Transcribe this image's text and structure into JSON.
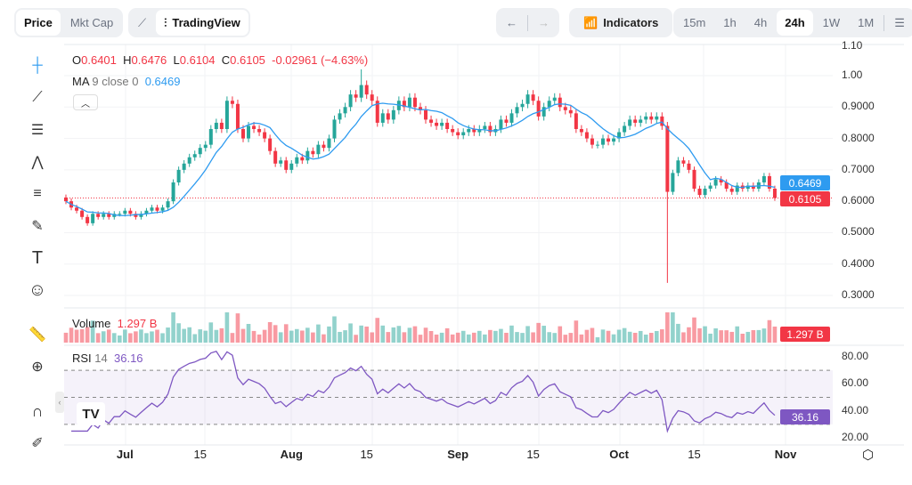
{
  "toolbar": {
    "price": "Price",
    "mkt_cap": "Mkt Cap",
    "tradingview": "TradingView",
    "indicators": "Indicators",
    "timeframes": [
      "15m",
      "1h",
      "4h",
      "24h",
      "1W",
      "1M"
    ],
    "active_timeframe": "24h"
  },
  "legend": {
    "o_label": "O",
    "o": "0.6401",
    "h_label": "H",
    "h": "0.6476",
    "l_label": "L",
    "l": "0.6104",
    "c_label": "C",
    "c": "0.6105",
    "change": "-0.02961 (−4.63%)",
    "ma_label": "MA",
    "ma_params": "9 close 0",
    "ma_value": "0.6469",
    "volume_label": "Volume",
    "volume_value": "1.297 B",
    "rsi_label": "RSI",
    "rsi_params": "14",
    "rsi_value": "36.16"
  },
  "tags": {
    "ma": "0.6469",
    "price": "0.6105",
    "volume": "1.297 B",
    "rsi": "36.16"
  },
  "colors": {
    "up": "#26a69a",
    "down": "#f23645",
    "ma": "#2e9bf0",
    "rsi": "#7e57c2"
  },
  "chart_data": {
    "type": "candlestick",
    "start_date": "Jun 20",
    "closes": [
      0.6,
      0.58,
      0.57,
      0.55,
      0.53,
      0.56,
      0.55,
      0.56,
      0.55,
      0.56,
      0.56,
      0.57,
      0.56,
      0.55,
      0.56,
      0.57,
      0.58,
      0.57,
      0.58,
      0.6,
      0.66,
      0.7,
      0.72,
      0.74,
      0.75,
      0.77,
      0.78,
      0.83,
      0.85,
      0.83,
      0.92,
      0.91,
      0.83,
      0.8,
      0.84,
      0.83,
      0.82,
      0.8,
      0.76,
      0.72,
      0.73,
      0.7,
      0.72,
      0.74,
      0.73,
      0.76,
      0.75,
      0.78,
      0.77,
      0.8,
      0.86,
      0.88,
      0.9,
      0.94,
      0.93,
      0.97,
      0.94,
      0.92,
      0.85,
      0.88,
      0.86,
      0.89,
      0.92,
      0.9,
      0.93,
      0.9,
      0.89,
      0.86,
      0.85,
      0.84,
      0.85,
      0.83,
      0.82,
      0.81,
      0.82,
      0.83,
      0.82,
      0.83,
      0.84,
      0.82,
      0.83,
      0.86,
      0.85,
      0.88,
      0.9,
      0.91,
      0.94,
      0.92,
      0.87,
      0.9,
      0.92,
      0.93,
      0.9,
      0.89,
      0.88,
      0.83,
      0.82,
      0.8,
      0.78,
      0.78,
      0.8,
      0.79,
      0.8,
      0.82,
      0.84,
      0.86,
      0.85,
      0.86,
      0.87,
      0.86,
      0.87,
      0.84,
      0.63,
      0.69,
      0.73,
      0.72,
      0.7,
      0.64,
      0.62,
      0.64,
      0.65,
      0.67,
      0.66,
      0.64,
      0.63,
      0.65,
      0.64,
      0.65,
      0.64,
      0.66,
      0.68,
      0.6401,
      0.6105
    ],
    "wick_overrides": [
      {
        "day": 55,
        "high": 1.02
      },
      {
        "day": 112,
        "low": 0.34
      }
    ],
    "price_axis": {
      "ticks": [
        "1.10",
        "1.00",
        "0.9000",
        "0.8000",
        "0.7000",
        "0.6000",
        "0.5000",
        "0.4000",
        "0.3000"
      ],
      "range": [
        0.29,
        1.11
      ]
    },
    "rsi_axis": {
      "ticks": [
        "80.00",
        "60.00",
        "40.00",
        "20.00"
      ],
      "bands": [
        30,
        50,
        70
      ]
    },
    "x_ticks": [
      {
        "label": "Jul",
        "day": 11
      },
      {
        "label": "15",
        "day": 25
      },
      {
        "label": "Aug",
        "day": 42
      },
      {
        "label": "15",
        "day": 56
      },
      {
        "label": "Sep",
        "day": 73
      },
      {
        "label": "15",
        "day": 87
      },
      {
        "label": "Oct",
        "day": 103
      },
      {
        "label": "15",
        "day": 117
      },
      {
        "label": "Nov",
        "day": 134
      }
    ]
  }
}
